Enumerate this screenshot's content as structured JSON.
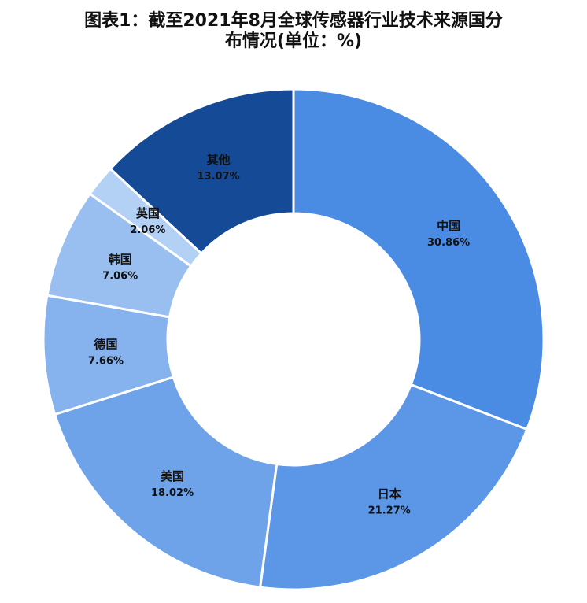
{
  "title_line1": "图表1：截至2021年8月全球传感器行业技术来源国分",
  "title_line2": "布情况(单位：%)",
  "chart_data": {
    "type": "pie",
    "donut": true,
    "title": "图表1：截至2021年8月全球传感器行业技术来源国分布情况(单位：%)",
    "unit": "%",
    "slices": [
      {
        "name": "中国",
        "value": 30.86,
        "label": "30.86%",
        "color": "#4A8BE3"
      },
      {
        "name": "日本",
        "value": 21.27,
        "label": "21.27%",
        "color": "#5C96E6"
      },
      {
        "name": "美国",
        "value": 18.02,
        "label": "18.02%",
        "color": "#6EA3EA"
      },
      {
        "name": "德国",
        "value": 7.66,
        "label": "7.66%",
        "color": "#86B2EE"
      },
      {
        "name": "韩国",
        "value": 7.06,
        "label": "7.06%",
        "color": "#99BFF1"
      },
      {
        "name": "英国",
        "value": 2.06,
        "label": "2.06%",
        "color": "#B3D0F5"
      },
      {
        "name": "其他",
        "value": 13.07,
        "label": "13.07%",
        "color": "#154A96"
      }
    ]
  }
}
